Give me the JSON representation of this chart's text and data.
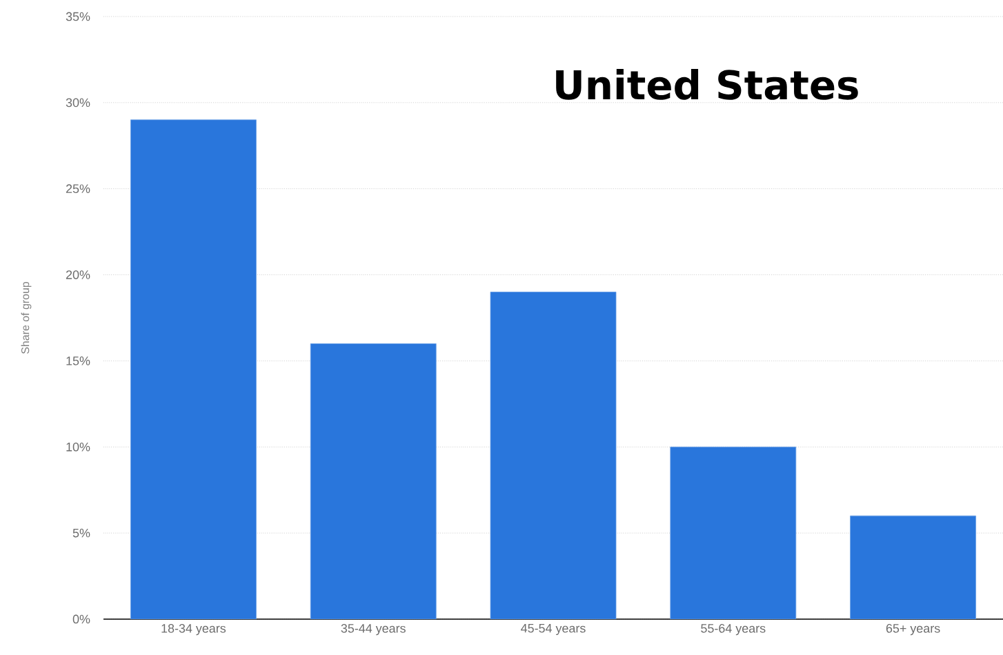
{
  "chart_data": {
    "type": "bar",
    "title": "United States",
    "ylabel": "Share of group",
    "categories": [
      "18-34 years",
      "35-44 years",
      "45-54 years",
      "55-64 years",
      "65+ years"
    ],
    "values": [
      29,
      16,
      19,
      10,
      6
    ],
    "color": "#2976dc",
    "ylim": [
      0,
      35
    ],
    "yticks": [
      {
        "value": 0,
        "label": "0%"
      },
      {
        "value": 5,
        "label": "5%"
      },
      {
        "value": 10,
        "label": "10%"
      },
      {
        "value": 15,
        "label": "15%"
      },
      {
        "value": 20,
        "label": "20%"
      },
      {
        "value": 25,
        "label": "25%"
      },
      {
        "value": 30,
        "label": "30%"
      },
      {
        "value": 35,
        "label": "35%"
      }
    ],
    "grid": "y"
  }
}
